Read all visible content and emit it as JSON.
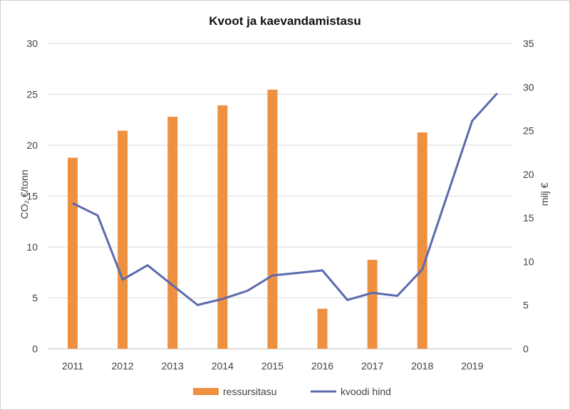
{
  "chart_data": {
    "type": "bar+line",
    "title": "Kvoot ja kaevandamistasu",
    "categories": [
      "2011",
      "2012",
      "2013",
      "2014",
      "2015",
      "2016",
      "2017",
      "2018",
      "2019"
    ],
    "ylabel_left": "CO₂ €/tonn",
    "ylabel_right": "milj €",
    "ylim_left": [
      0,
      30
    ],
    "yticks_left": [
      0,
      5,
      10,
      15,
      20,
      25,
      30
    ],
    "ylim_right": [
      0,
      35
    ],
    "yticks_right": [
      0,
      5,
      10,
      15,
      20,
      25,
      30,
      35
    ],
    "grid": true,
    "legend_position": "bottom",
    "series": [
      {
        "name": "ressursitasu",
        "type": "bar",
        "axis": "right",
        "color": "#ED9140",
        "values": [
          21.9,
          25.0,
          26.6,
          27.9,
          29.7,
          4.6,
          10.2,
          24.8,
          null
        ]
      },
      {
        "name": "kvoodi hind",
        "type": "line",
        "axis": "left",
        "color": "#5B6AAE",
        "points": [
          [
            2011,
            14.3
          ],
          [
            2011.5,
            13.1
          ],
          [
            2012,
            6.8
          ],
          [
            2012.5,
            8.2
          ],
          [
            2013.5,
            4.3
          ],
          [
            2014,
            4.9
          ],
          [
            2014.5,
            5.7
          ],
          [
            2015,
            7.2
          ],
          [
            2016,
            7.7
          ],
          [
            2016.5,
            4.8
          ],
          [
            2017,
            5.5
          ],
          [
            2017.5,
            5.2
          ],
          [
            2018,
            7.8
          ],
          [
            2019,
            22.4
          ],
          [
            2019.5,
            25.1
          ]
        ]
      }
    ]
  }
}
